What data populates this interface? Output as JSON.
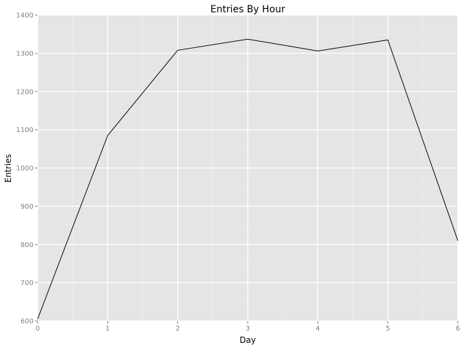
{
  "chart_data": {
    "type": "line",
    "title": "Entries By Hour",
    "xlabel": "Day",
    "ylabel": "Entries",
    "x": [
      0,
      1,
      2,
      3,
      4,
      5,
      6
    ],
    "series": [
      {
        "values": [
          605,
          1085,
          1308,
          1337,
          1306,
          1335,
          810
        ]
      }
    ],
    "xlim": [
      0,
      6
    ],
    "ylim": [
      600,
      1400
    ],
    "x_ticks": [
      0,
      1,
      2,
      3,
      4,
      5,
      6
    ],
    "y_ticks": [
      600,
      700,
      800,
      900,
      1000,
      1100,
      1200,
      1300,
      1400
    ],
    "grid": true,
    "colors": {
      "panel_background": "#e5e5e5",
      "major_grid": "#ffffff",
      "minor_grid": "#f2f2f2",
      "line": "#000000",
      "tick_label": "#7f7f7f"
    }
  }
}
